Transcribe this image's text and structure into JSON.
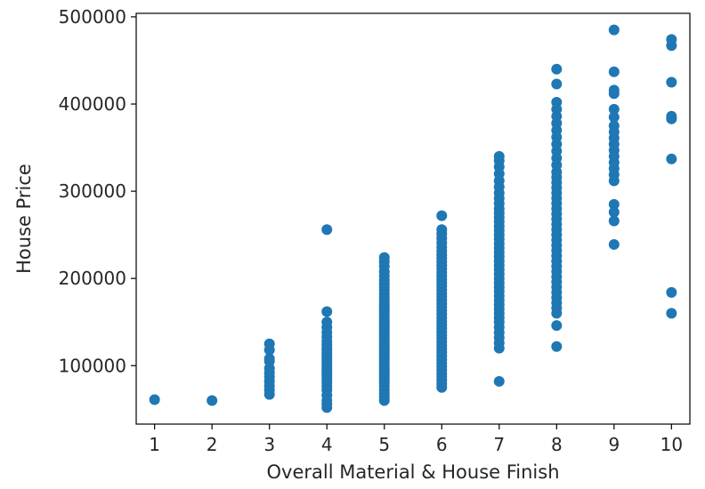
{
  "chart_data": {
    "type": "scatter",
    "title": "",
    "xlabel": "Overall Material & House Finish",
    "ylabel": "House Price",
    "xlim": [
      0.68,
      10.32
    ],
    "ylim": [
      33000,
      504000
    ],
    "grid": false,
    "legend": "none",
    "marker_color": "#1f77b4",
    "x_ticks": [
      1,
      2,
      3,
      4,
      5,
      6,
      7,
      8,
      9,
      10
    ],
    "x_tick_labels": [
      "1",
      "2",
      "3",
      "4",
      "5",
      "6",
      "7",
      "8",
      "9",
      "10"
    ],
    "y_ticks": [
      100000,
      200000,
      300000,
      400000,
      500000
    ],
    "y_tick_labels": [
      "100000",
      "200000",
      "300000",
      "400000",
      "500000"
    ],
    "series": [
      {
        "values_by_x": {
          "1": [
            61000
          ],
          "2": [
            60000
          ],
          "3": [
            67000,
            72000,
            77000,
            82000,
            87000,
            92000,
            97000,
            105000,
            108000,
            118000,
            125000
          ],
          "4": [
            52000,
            56000,
            60000,
            66000,
            72000,
            76000,
            80000,
            84000,
            87000,
            90000,
            93000,
            96000,
            99000,
            102000,
            105000,
            108000,
            111000,
            114000,
            117000,
            120000,
            124000,
            128000,
            133000,
            138000,
            144000,
            150000,
            162000,
            256000
          ],
          "5": [
            60000,
            64000,
            68000,
            72000,
            76000,
            80000,
            83000,
            86000,
            89000,
            92000,
            95000,
            98000,
            101000,
            104000,
            107000,
            110000,
            113000,
            116000,
            119000,
            122000,
            125000,
            128000,
            131000,
            134000,
            137000,
            140000,
            143000,
            146000,
            149000,
            152000,
            155000,
            158000,
            161000,
            164000,
            167000,
            170000,
            174000,
            178000,
            182000,
            186000,
            190000,
            194000,
            198000,
            203000,
            208000,
            214000,
            219000,
            224000
          ],
          "6": [
            75000,
            79000,
            83000,
            87000,
            91000,
            95000,
            99000,
            103000,
            107000,
            111000,
            115000,
            119000,
            123000,
            127000,
            131000,
            135000,
            139000,
            143000,
            147000,
            151000,
            155000,
            159000,
            163000,
            167000,
            171000,
            175000,
            179000,
            183000,
            187000,
            191000,
            195000,
            199000,
            203000,
            207000,
            211000,
            215000,
            219000,
            223000,
            227000,
            231000,
            236000,
            241000,
            246000,
            251000,
            256000,
            272000
          ],
          "7": [
            82000,
            120000,
            126000,
            132000,
            138000,
            144000,
            150000,
            155000,
            160000,
            165000,
            170000,
            175000,
            180000,
            185000,
            190000,
            195000,
            200000,
            205000,
            210000,
            215000,
            220000,
            225000,
            230000,
            235000,
            240000,
            245000,
            250000,
            255000,
            260000,
            265000,
            270000,
            275000,
            280000,
            286000,
            292000,
            298000,
            305000,
            312000,
            320000,
            328000,
            335000,
            340000
          ],
          "8": [
            122000,
            146000,
            160000,
            166000,
            172000,
            178000,
            184000,
            190000,
            196000,
            202000,
            208000,
            214000,
            220000,
            226000,
            232000,
            238000,
            244000,
            250000,
            256000,
            262000,
            268000,
            274000,
            280000,
            286000,
            292000,
            298000,
            304000,
            310000,
            316000,
            322000,
            330000,
            338000,
            346000,
            354000,
            362000,
            370000,
            378000,
            386000,
            394000,
            402000,
            423000,
            440000
          ],
          "9": [
            239000,
            266000,
            276000,
            285000,
            312000,
            319000,
            326000,
            333000,
            340000,
            347000,
            354000,
            361000,
            368000,
            375000,
            385000,
            394000,
            412000,
            416000,
            437000,
            485000
          ],
          "10": [
            160000,
            184000,
            337000,
            383000,
            386000,
            425000,
            467000,
            474000
          ]
        }
      }
    ]
  }
}
